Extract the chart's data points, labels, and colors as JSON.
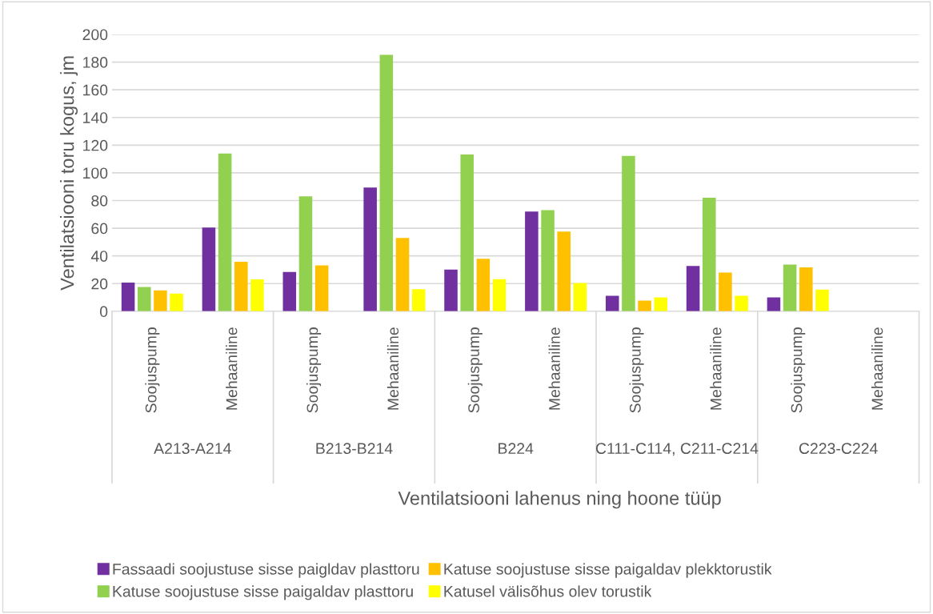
{
  "chart_data": {
    "type": "bar",
    "categories": [
      "Soojuspump",
      "Mehaaniline",
      "Soojuspump",
      "Mehaaniline",
      "Soojuspump",
      "Mehaaniline",
      "Soojuspump",
      "Mehaaniline",
      "Soojuspump",
      "Mehaaniline"
    ],
    "series": [
      {
        "name": "Fassaadi soojustuse sisse paigldav plasttoru",
        "color": "#7030a0",
        "values": [
          20.7,
          60.5,
          28.4,
          89.4,
          30.2,
          72.1,
          11.2,
          32.7,
          10.1,
          null
        ]
      },
      {
        "name": "Katuse soojustuse sisse paigaldav plasttoru",
        "color": "#92d050",
        "values": [
          17.6,
          113.9,
          83.0,
          185.3,
          113.3,
          73.1,
          112.2,
          82.0,
          33.8,
          null
        ]
      },
      {
        "name": "Katuse soojustuse sisse paigaldav plekktorustik",
        "color": "#ffc000",
        "values": [
          15.1,
          35.8,
          33.1,
          53.0,
          37.9,
          57.6,
          7.7,
          27.9,
          31.7,
          null
        ]
      },
      {
        "name": "Katusel välisõhus olev torustik",
        "color": "#ffff00",
        "values": [
          12.8,
          23.0,
          null,
          15.9,
          23.2,
          20.5,
          10.1,
          11.2,
          15.7,
          null
        ]
      }
    ],
    "annotations": [
      "A213-A214",
      "B213-B214",
      "B224",
      "C111-C114, C211-C214",
      "C223-C224"
    ],
    "xlabel": "Ventilatsiooni lahenus ning hoone tüüp",
    "ylabel": "Ventilatsiooni toru kogus, jm",
    "ylim": [
      0,
      200
    ],
    "yticks": [
      0,
      20,
      40,
      60,
      80,
      100,
      120,
      140,
      160,
      180,
      200
    ],
    "grid": "y",
    "legend": "bottom"
  }
}
